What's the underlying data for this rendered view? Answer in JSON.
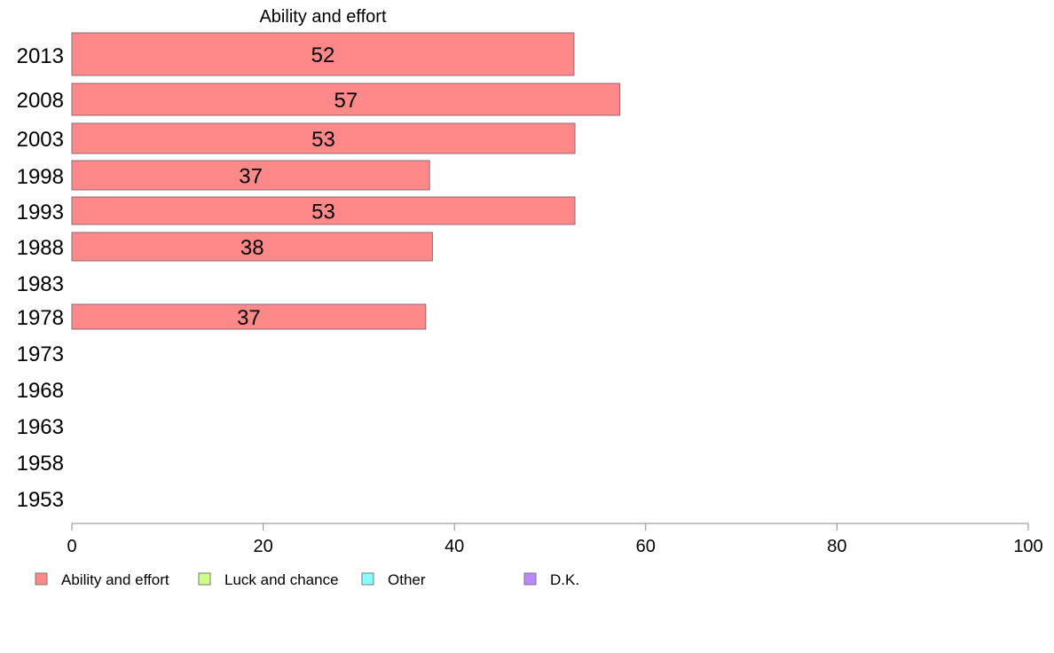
{
  "chart_data": {
    "type": "bar",
    "orientation": "horizontal",
    "title": "Ability and effort",
    "categories": [
      "2013",
      "2008",
      "2003",
      "1998",
      "1993",
      "1988",
      "1983",
      "1978",
      "1973",
      "1968",
      "1963",
      "1958",
      "1953"
    ],
    "series": [
      {
        "name": "Ability and effort",
        "color": "#ff8888",
        "values": [
          52.5,
          57.3,
          52.6,
          37.4,
          52.6,
          37.7,
          null,
          37.0,
          null,
          null,
          null,
          null,
          null
        ],
        "labels": [
          "52",
          "57",
          "53",
          "37",
          "53",
          "38",
          "",
          "37",
          "",
          "",
          "",
          "",
          ""
        ]
      }
    ],
    "xlim": [
      0,
      100
    ],
    "xticks": [
      "0",
      "20",
      "40",
      "60",
      "80",
      "100"
    ],
    "grid": false,
    "legend": {
      "position": "bottom-left",
      "entries": [
        {
          "label": "Ability and effort",
          "color": "#ff8888"
        },
        {
          "label": "Luck and chance",
          "color": "#ccff88"
        },
        {
          "label": "Other",
          "color": "#88ffff"
        },
        {
          "label": "D.K.",
          "color": "#bb88ff"
        }
      ]
    }
  }
}
